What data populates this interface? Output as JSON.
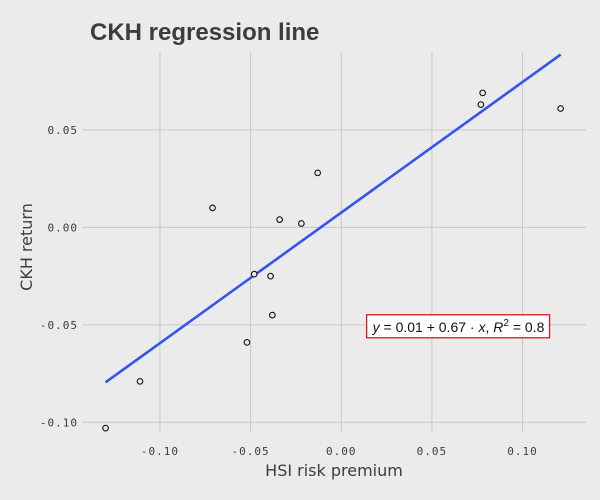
{
  "chart_data": {
    "type": "scatter",
    "title": "CKH regression line",
    "xlabel": "HSI risk premium",
    "ylabel": "CKH return",
    "xlim": [
      -0.143,
      0.135
    ],
    "ylim": [
      -0.105,
      0.09
    ],
    "x_ticks": [
      -0.1,
      -0.05,
      0.0,
      0.05,
      0.1
    ],
    "x_tick_labels": [
      "-0.10",
      "-0.05",
      "0.00",
      "0.05",
      "0.10"
    ],
    "y_ticks": [
      -0.1,
      -0.05,
      0.0,
      0.05
    ],
    "y_tick_labels": [
      "-0.10",
      "-0.05",
      "0.00",
      "0.05"
    ],
    "grid": true,
    "points": [
      {
        "x": -0.13,
        "y": -0.103
      },
      {
        "x": -0.111,
        "y": -0.079
      },
      {
        "x": -0.071,
        "y": 0.01
      },
      {
        "x": -0.052,
        "y": -0.059
      },
      {
        "x": -0.048,
        "y": -0.024
      },
      {
        "x": -0.039,
        "y": -0.025
      },
      {
        "x": -0.038,
        "y": -0.045
      },
      {
        "x": -0.034,
        "y": 0.004
      },
      {
        "x": -0.022,
        "y": 0.002
      },
      {
        "x": -0.013,
        "y": 0.028
      },
      {
        "x": 0.077,
        "y": 0.063
      },
      {
        "x": 0.078,
        "y": 0.069
      },
      {
        "x": 0.121,
        "y": 0.061
      }
    ],
    "regression_line": {
      "intercept": 0.0076,
      "slope": 0.67,
      "x_range": [
        -0.13,
        0.121
      ],
      "color": "#3355ee"
    },
    "annotation": {
      "x": 0.065,
      "y": -0.051,
      "y_part": "y",
      "eq_part": " = 0.01 + 0.67 · ",
      "x_part": "x",
      "sep_part": ",  ",
      "r_part": "R",
      "sup_part": "2",
      "r_value_part": " = 0.8",
      "border_color": "#e8141b"
    },
    "colors": {
      "background": "#ebebeb",
      "grid": "#c8c8c8",
      "point_stroke": "#111111",
      "point_fill": "#ebebeb"
    }
  }
}
